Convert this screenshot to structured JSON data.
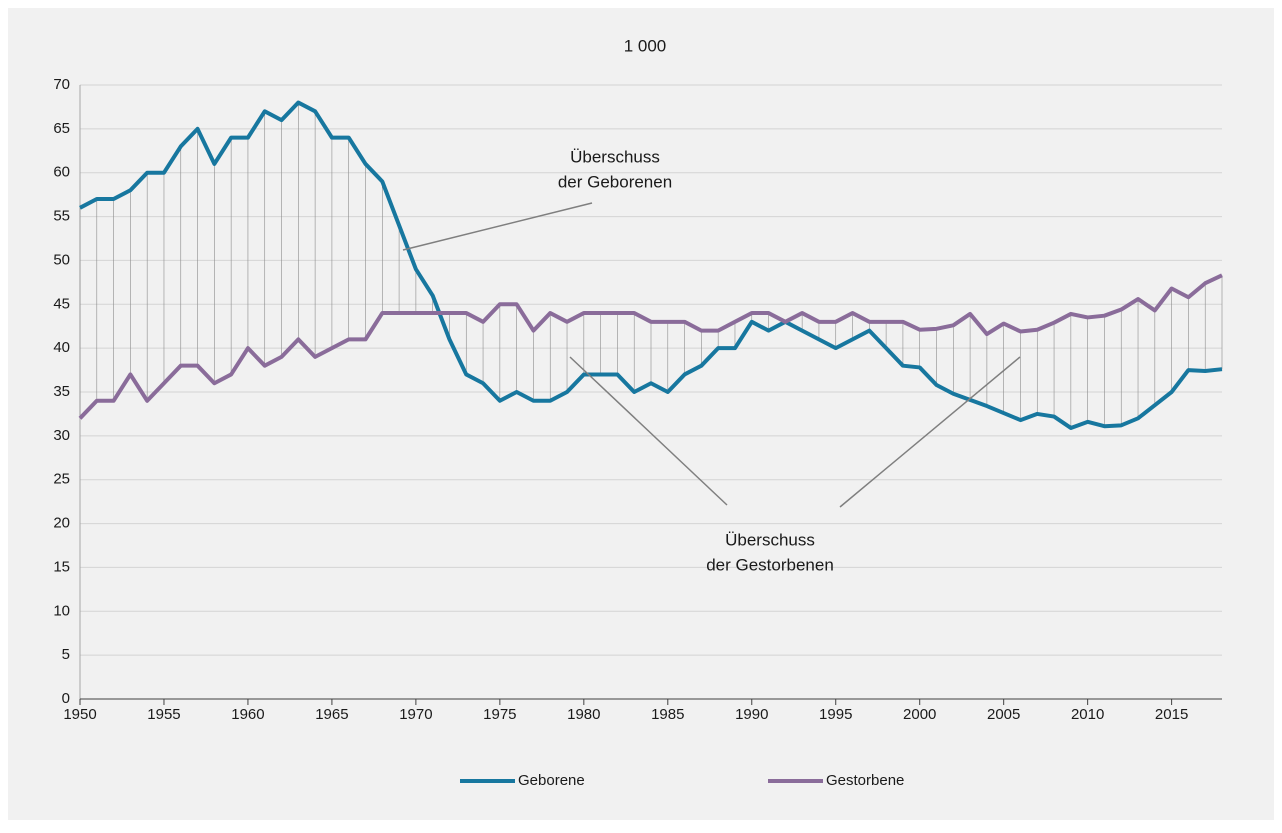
{
  "chart_data": {
    "type": "line",
    "title": "1 000",
    "x": [
      1950,
      1951,
      1952,
      1953,
      1954,
      1955,
      1956,
      1957,
      1958,
      1959,
      1960,
      1961,
      1962,
      1963,
      1964,
      1965,
      1966,
      1967,
      1968,
      1969,
      1970,
      1971,
      1972,
      1973,
      1974,
      1975,
      1976,
      1977,
      1978,
      1979,
      1980,
      1981,
      1982,
      1983,
      1984,
      1985,
      1986,
      1987,
      1988,
      1989,
      1990,
      1991,
      1992,
      1993,
      1994,
      1995,
      1996,
      1997,
      1998,
      1999,
      2000,
      2001,
      2002,
      2003,
      2004,
      2005,
      2006,
      2007,
      2008,
      2009,
      2010,
      2011,
      2012,
      2013,
      2014,
      2015,
      2016,
      2017,
      2018
    ],
    "series": [
      {
        "name": "Geborene",
        "color": "#17779f",
        "values": [
          56,
          57,
          57,
          58,
          60,
          60,
          63,
          65,
          61,
          64,
          64,
          67,
          66,
          68,
          67,
          64,
          64,
          61,
          59,
          54,
          49,
          46,
          41,
          37,
          36,
          34,
          35,
          34,
          34,
          35,
          37,
          37,
          37,
          35,
          36,
          35,
          37,
          38,
          40,
          40,
          43,
          42,
          43,
          42,
          41,
          40,
          41,
          42,
          40,
          38,
          37.8,
          35.8,
          34.8,
          34.1,
          33.4,
          32.6,
          31.8,
          32.5,
          32.2,
          30.9,
          31.6,
          31.1,
          31.2,
          32,
          33.5,
          35,
          37.5,
          37.4,
          37.6
        ]
      },
      {
        "name": "Gestorbene",
        "color": "#8a6c9a",
        "values": [
          32,
          34,
          34,
          37,
          34,
          36,
          38,
          38,
          36,
          37,
          40,
          38,
          39,
          41,
          39,
          40,
          41,
          41,
          44,
          44,
          44,
          44,
          44,
          44,
          43,
          45,
          45,
          42,
          44,
          43,
          44,
          44,
          44,
          44,
          43,
          43,
          43,
          42,
          42,
          43,
          44,
          44,
          43,
          44,
          43,
          43,
          44,
          43,
          43,
          43,
          42.1,
          42.2,
          42.6,
          43.9,
          41.6,
          42.8,
          41.9,
          42.1,
          42.9,
          43.9,
          43.5,
          43.7,
          44.4,
          45.6,
          44.3,
          46.8,
          45.8,
          47.4,
          48.3
        ]
      }
    ],
    "xlim": [
      1950,
      2018
    ],
    "xticks": [
      1950,
      1955,
      1960,
      1965,
      1970,
      1975,
      1980,
      1985,
      1990,
      1995,
      2000,
      2005,
      2010,
      2015
    ],
    "ylim": [
      0,
      70
    ],
    "yticks": [
      0,
      5,
      10,
      15,
      20,
      25,
      30,
      35,
      40,
      45,
      50,
      55,
      60,
      65,
      70
    ],
    "grid": true,
    "legend": "bottom",
    "annotations": [
      {
        "lines": [
          "Überschuss",
          "der Geborenen"
        ]
      },
      {
        "lines": [
          "Überschuss",
          "der Gestorbenen"
        ]
      }
    ]
  }
}
